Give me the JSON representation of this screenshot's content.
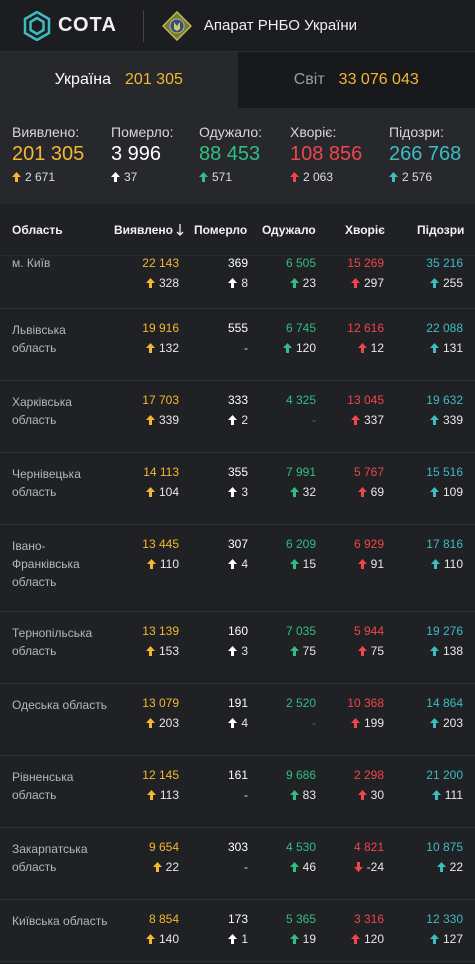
{
  "header": {
    "logo_text": "СОТА",
    "org_name": "Апарат РНБО України"
  },
  "scope_tabs": [
    {
      "label": "Україна",
      "value": "201 305",
      "active": true
    },
    {
      "label": "Світ",
      "value": "33 076 043",
      "active": false
    }
  ],
  "summary": [
    {
      "label": "Виявлено:",
      "value": "201 305",
      "delta": "2 671",
      "color": "#f5b731",
      "arrow_color": "#f5b731",
      "dir": "up"
    },
    {
      "label": "Померло:",
      "value": "3 996",
      "delta": "37",
      "color": "#ffffff",
      "arrow_color": "#ffffff",
      "dir": "up"
    },
    {
      "label": "Одужало:",
      "value": "88 453",
      "delta": "571",
      "color": "#2fbf83",
      "arrow_color": "#2fbf83",
      "dir": "up"
    },
    {
      "label": "Хворіє:",
      "value": "108 856",
      "delta": "2 063",
      "color": "#f0454b",
      "arrow_color": "#f0454b",
      "dir": "up"
    },
    {
      "label": "Підозри:",
      "value": "266 768",
      "delta": "2 576",
      "color": "#3dbcc2",
      "arrow_color": "#3dbcc2",
      "dir": "up"
    }
  ],
  "table": {
    "columns": [
      "Область",
      "Виявлено",
      "Померло",
      "Одужало",
      "Хворіє",
      "Підозри"
    ],
    "sort_icon": "arrow-down-icon",
    "rows": [
      {
        "region": "м. Київ",
        "cases": [
          "22 143",
          "328",
          "up"
        ],
        "deaths": [
          "369",
          "8",
          "up"
        ],
        "recovered": [
          "6 505",
          "23",
          "up"
        ],
        "sick": [
          "15 269",
          "297",
          "up"
        ],
        "suspected": [
          "35 216",
          "255",
          "up"
        ]
      },
      {
        "region": "Львівська область",
        "cases": [
          "19 916",
          "132",
          "up"
        ],
        "deaths": [
          "555",
          "-",
          ""
        ],
        "recovered": [
          "6 745",
          "120",
          "up"
        ],
        "sick": [
          "12 616",
          "12",
          "up"
        ],
        "suspected": [
          "22 088",
          "131",
          "up"
        ]
      },
      {
        "region": "Харківська область",
        "cases": [
          "17 703",
          "339",
          "up"
        ],
        "deaths": [
          "333",
          "2",
          "up"
        ],
        "recovered": [
          "4 325",
          "-",
          ""
        ],
        "sick": [
          "13 045",
          "337",
          "up"
        ],
        "suspected": [
          "19 632",
          "339",
          "up"
        ]
      },
      {
        "region": "Чернівецька область",
        "cases": [
          "14 113",
          "104",
          "up"
        ],
        "deaths": [
          "355",
          "3",
          "up"
        ],
        "recovered": [
          "7 991",
          "32",
          "up"
        ],
        "sick": [
          "5 767",
          "69",
          "up"
        ],
        "suspected": [
          "15 516",
          "109",
          "up"
        ]
      },
      {
        "region": "Івано-Франківська область",
        "cases": [
          "13 445",
          "110",
          "up"
        ],
        "deaths": [
          "307",
          "4",
          "up"
        ],
        "recovered": [
          "6 209",
          "15",
          "up"
        ],
        "sick": [
          "6 929",
          "91",
          "up"
        ],
        "suspected": [
          "17 816",
          "110",
          "up"
        ]
      },
      {
        "region": "Тернопільська область",
        "cases": [
          "13 139",
          "153",
          "up"
        ],
        "deaths": [
          "160",
          "3",
          "up"
        ],
        "recovered": [
          "7 035",
          "75",
          "up"
        ],
        "sick": [
          "5 944",
          "75",
          "up"
        ],
        "suspected": [
          "19 276",
          "138",
          "up"
        ]
      },
      {
        "region": "Одеська область",
        "cases": [
          "13 079",
          "203",
          "up"
        ],
        "deaths": [
          "191",
          "4",
          "up"
        ],
        "recovered": [
          "2 520",
          "-",
          ""
        ],
        "sick": [
          "10 368",
          "199",
          "up"
        ],
        "suspected": [
          "14 864",
          "203",
          "up"
        ]
      },
      {
        "region": "Рівненська область",
        "cases": [
          "12 145",
          "113",
          "up"
        ],
        "deaths": [
          "161",
          "-",
          ""
        ],
        "recovered": [
          "9 686",
          "83",
          "up"
        ],
        "sick": [
          "2 298",
          "30",
          "up"
        ],
        "suspected": [
          "21 200",
          "111",
          "up"
        ]
      },
      {
        "region": "Закарпатська область",
        "cases": [
          "9 654",
          "22",
          "up"
        ],
        "deaths": [
          "303",
          "-",
          ""
        ],
        "recovered": [
          "4 530",
          "46",
          "up"
        ],
        "sick": [
          "4 821",
          "-24",
          "down"
        ],
        "suspected": [
          "10 875",
          "22",
          "up"
        ]
      },
      {
        "region": "Київська область",
        "cases": [
          "8 854",
          "140",
          "up"
        ],
        "deaths": [
          "173",
          "1",
          "up"
        ],
        "recovered": [
          "5 365",
          "19",
          "up"
        ],
        "sick": [
          "3 316",
          "120",
          "up"
        ],
        "suspected": [
          "12 330",
          "127",
          "up"
        ]
      }
    ]
  },
  "colors": {
    "cases": "#f5b731",
    "deaths": "#ffffff",
    "recovered": "#2fbf83",
    "sick": "#f0454b",
    "suspected": "#3dbcc2"
  }
}
